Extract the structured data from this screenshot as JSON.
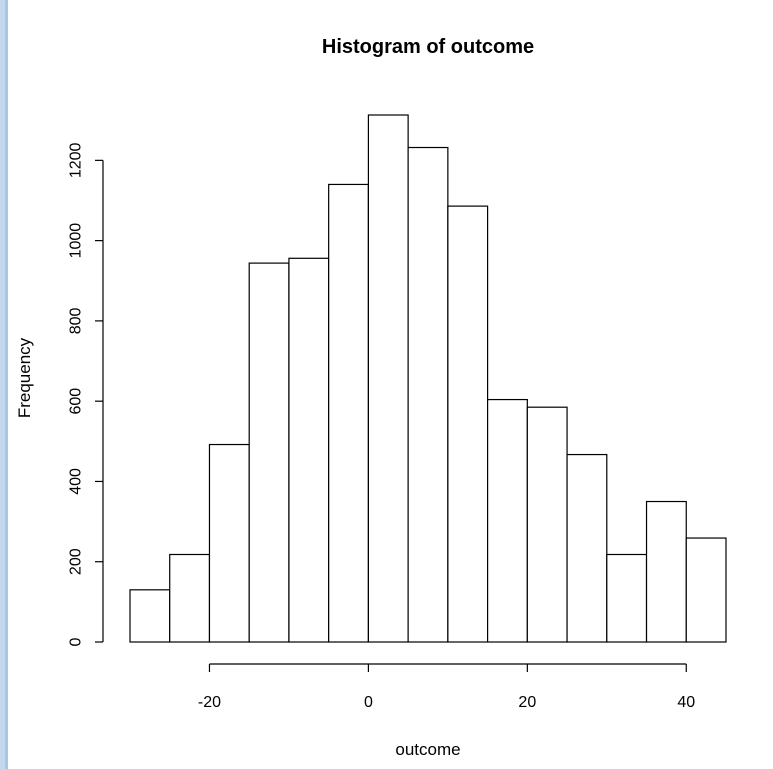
{
  "colors": {
    "frame_accent": "#c3d8ee",
    "bar_fill": "#ffffff",
    "bar_stroke": "#000000"
  },
  "chart_data": {
    "type": "bar",
    "title": "Histogram of outcome",
    "xlabel": "outcome",
    "ylabel": "Frequency",
    "bin_edges": [
      -30,
      -25,
      -20,
      -15,
      -10,
      -5,
      0,
      5,
      10,
      15,
      20,
      25,
      30,
      35,
      40,
      45
    ],
    "values": [
      130,
      218,
      492,
      944,
      956,
      1140,
      1313,
      1232,
      1086,
      604,
      585,
      467,
      218,
      350,
      259
    ],
    "x_ticks": [
      -20,
      0,
      20,
      40
    ],
    "y_ticks": [
      0,
      200,
      400,
      600,
      800,
      1000,
      1200
    ],
    "xlim": [
      -30,
      45
    ],
    "ylim": [
      0,
      1313
    ],
    "grid": false,
    "legend": "none"
  }
}
